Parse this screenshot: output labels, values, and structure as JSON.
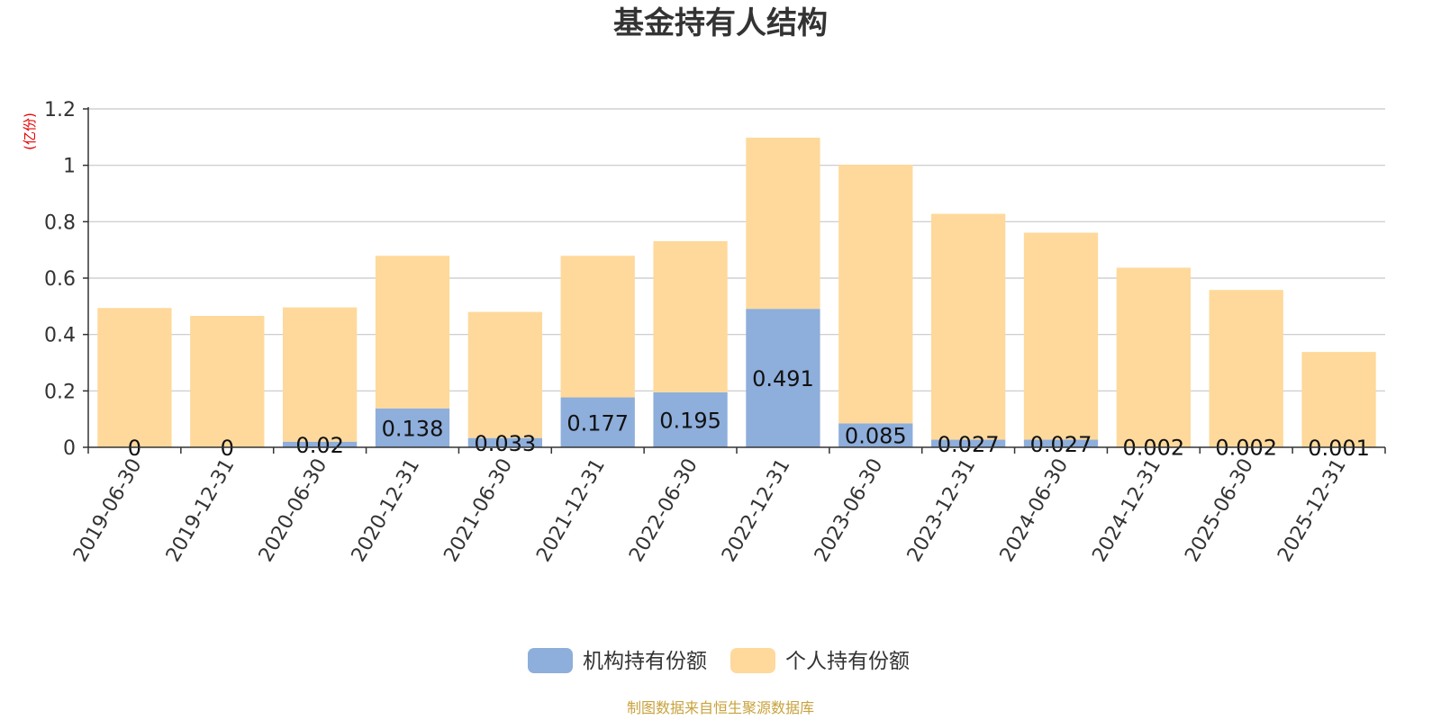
{
  "chart_data": {
    "type": "bar",
    "stacked": true,
    "title": "基金持有人结构",
    "ylabel": "(亿份)",
    "ylim": [
      0,
      1.2
    ],
    "yticks": [
      "0",
      "0.2",
      "0.4",
      "0.6",
      "0.8",
      "1",
      "1.2"
    ],
    "grid": true,
    "legend_position": "bottom",
    "categories": [
      "2019-06-30",
      "2019-12-31",
      "2020-06-30",
      "2020-12-31",
      "2021-06-30",
      "2021-12-31",
      "2022-06-30",
      "2022-12-31",
      "2023-06-30",
      "2023-12-31",
      "2024-06-30",
      "2024-12-31",
      "2025-06-30",
      "2025-12-31"
    ],
    "series": [
      {
        "name": "机构持有份额",
        "color": "#8eaedb",
        "values": [
          0,
          0,
          0.02,
          0.138,
          0.033,
          0.177,
          0.195,
          0.491,
          0.085,
          0.027,
          0.027,
          0.002,
          0.002,
          0.001
        ],
        "labels": [
          "0",
          "0",
          "0.02",
          "0.138",
          "0.033",
          "0.177",
          "0.195",
          "0.491",
          "0.085",
          "0.027",
          "0.027",
          "0.002",
          "0.002",
          "0.001"
        ]
      },
      {
        "name": "个人持有份额",
        "color": "#fed99b",
        "values": [
          0.494,
          0.466,
          0.476,
          0.541,
          0.447,
          0.502,
          0.536,
          0.607,
          0.917,
          0.801,
          0.734,
          0.635,
          0.556,
          0.337
        ]
      }
    ],
    "source": "制图数据来自恒生聚源数据库"
  }
}
